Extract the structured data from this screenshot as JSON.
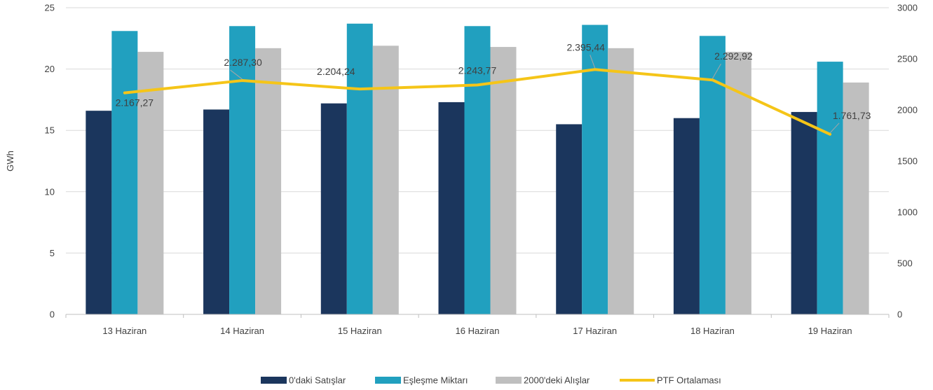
{
  "chart_data": {
    "type": "bar",
    "categories": [
      "13 Haziran",
      "14 Haziran",
      "15 Haziran",
      "16 Haziran",
      "17 Haziran",
      "18 Haziran",
      "19 Haziran"
    ],
    "series": [
      {
        "name": "0'daki Satışlar",
        "type": "bar",
        "axis": "left",
        "color": "#1b365d",
        "values": [
          16.6,
          16.7,
          17.2,
          17.3,
          15.5,
          16.0,
          16.5
        ]
      },
      {
        "name": "Eşleşme Miktarı",
        "type": "bar",
        "axis": "left",
        "color": "#21a0bf",
        "values": [
          23.1,
          23.5,
          23.7,
          23.5,
          23.6,
          22.7,
          20.6
        ]
      },
      {
        "name": "2000'deki Alışlar",
        "type": "bar",
        "axis": "left",
        "color": "#bfbfbf",
        "values": [
          21.4,
          21.7,
          21.9,
          21.8,
          21.7,
          21.4,
          18.9
        ]
      },
      {
        "name": "PTF Ortalaması",
        "type": "line",
        "axis": "right",
        "color": "#f5c518",
        "values": [
          2167.27,
          2287.3,
          2204.24,
          2243.77,
          2395.44,
          2292.92,
          1761.73
        ],
        "labels": [
          "2.167,27",
          "2.287,30",
          "2.204,24",
          "2.243,77",
          "2.395,44",
          "2.292,92",
          "1.761,73"
        ]
      }
    ],
    "ylabel": "GWh",
    "ylim": [
      0,
      25
    ],
    "yticks": [
      "0",
      "5",
      "10",
      "15",
      "20",
      "25"
    ],
    "y2lim": [
      0,
      3000
    ],
    "y2ticks": [
      "0",
      "500",
      "1000",
      "1500",
      "2000",
      "2500",
      "3000"
    ],
    "grid": true,
    "legend_position": "bottom"
  }
}
